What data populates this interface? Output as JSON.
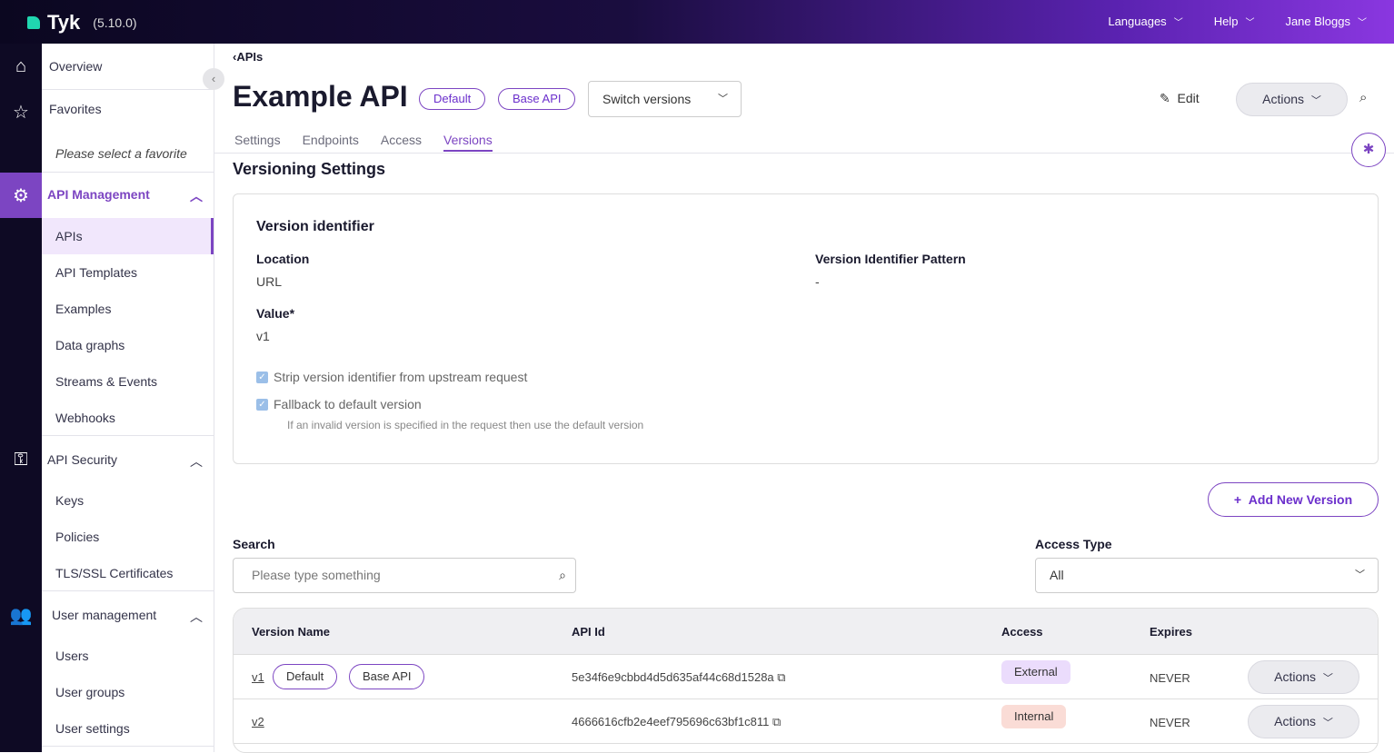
{
  "topbar": {
    "brand": "Tyk",
    "version": "(5.10.0)",
    "menu": [
      "Languages",
      "Help",
      "Jane Bloggs"
    ]
  },
  "sidebar": {
    "overview": "Overview",
    "favorites": "Favorites",
    "favorites_empty": "Please select a favorite",
    "sections": [
      {
        "title": "API Management",
        "items": [
          "APIs",
          "API Templates",
          "Examples",
          "Data graphs",
          "Streams & Events",
          "Webhooks"
        ]
      },
      {
        "title": "API Security",
        "items": [
          "Keys",
          "Policies",
          "TLS/SSL Certificates"
        ]
      },
      {
        "title": "User management",
        "items": [
          "Users",
          "User groups",
          "User settings"
        ]
      }
    ],
    "active": "APIs"
  },
  "header": {
    "breadcrumb": "APIs",
    "title": "Example API",
    "badges": [
      "Default",
      "Base API"
    ],
    "switch_versions": "Switch versions",
    "edit": "Edit",
    "actions": "Actions"
  },
  "tabs": [
    "Settings",
    "Endpoints",
    "Access",
    "Versions"
  ],
  "active_tab": "Versions",
  "versioning": {
    "heading": "Versioning Settings",
    "card_title": "Version identifier",
    "location_label": "Location",
    "location_value": "URL",
    "pattern_label": "Version Identifier Pattern",
    "pattern_value": "-",
    "value_label": "Value*",
    "value_value": "v1",
    "strip_label": "Strip version identifier from upstream request",
    "strip_checked": true,
    "fallback_label": "Fallback to default version",
    "fallback_checked": true,
    "fallback_help": "If an invalid version is specified in the request then use the default version"
  },
  "add_version": "Add New Version",
  "search": {
    "label": "Search",
    "placeholder": "Please type something"
  },
  "access_type": {
    "label": "Access Type",
    "value": "All"
  },
  "table": {
    "headers": [
      "Version Name",
      "API Id",
      "Access",
      "Expires"
    ],
    "rows": [
      {
        "name": "v1",
        "badges": [
          "Default",
          "Base API"
        ],
        "api_id": "5e34f6e9cbbd4d5d635af44c68d1528a",
        "access": "External",
        "expires": "NEVER",
        "actions": "Actions"
      },
      {
        "name": "v2",
        "badges": [],
        "api_id": "4666616cfb2e4eef795696c63bf1c811",
        "access": "Internal",
        "expires": "NEVER",
        "actions": "Actions"
      }
    ]
  },
  "colors": {
    "accent": "#7c45c2",
    "external": "#ebdcfc",
    "internal": "#fadcd6"
  }
}
